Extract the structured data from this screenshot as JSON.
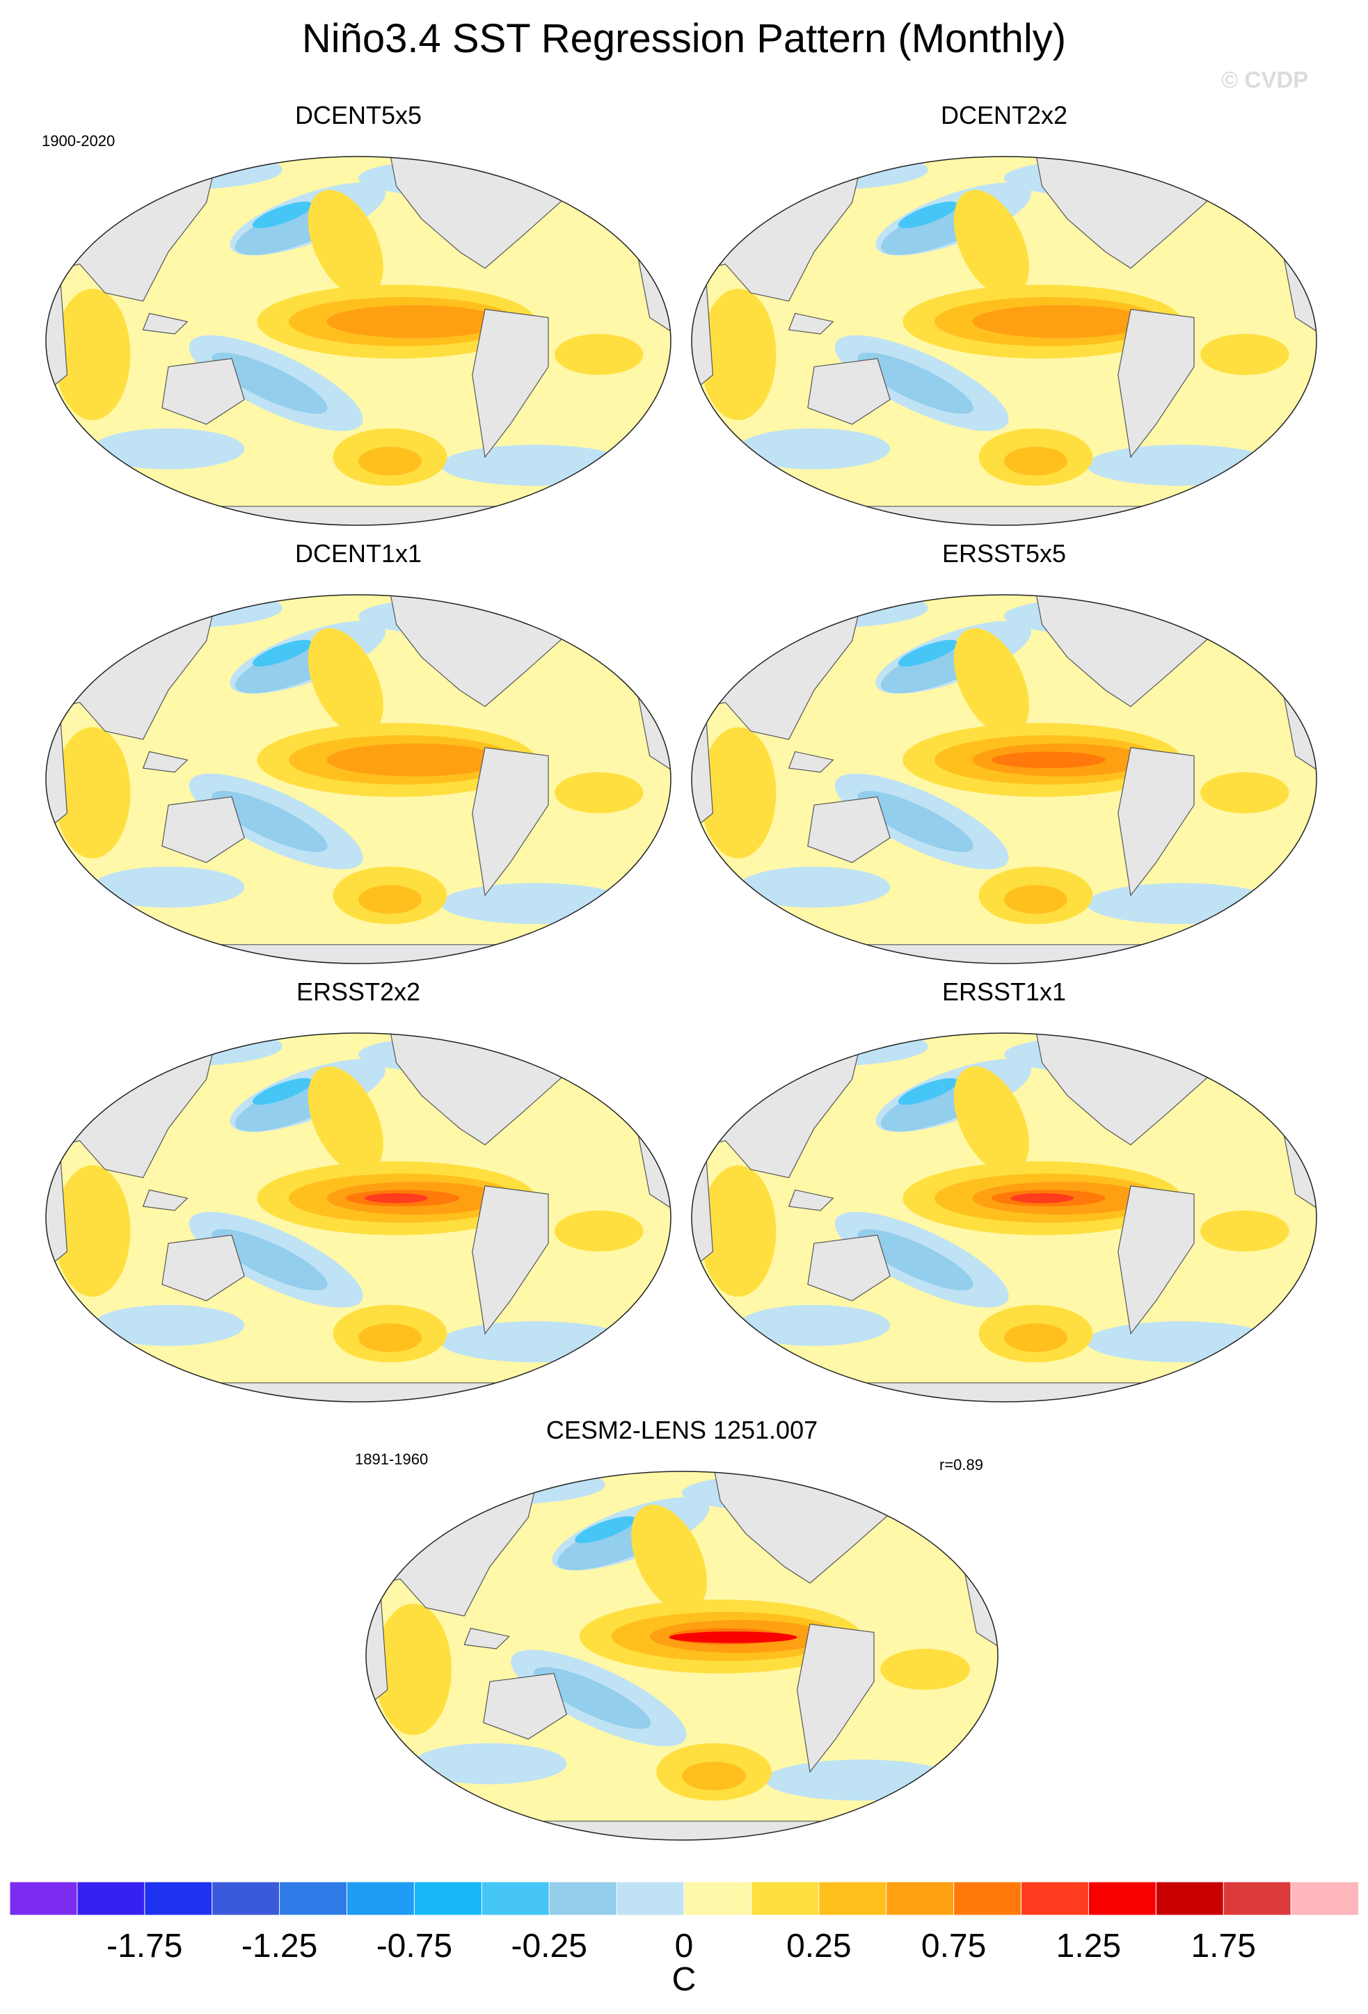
{
  "title": "Niño3.4 SST Regression Pattern (Monthly)",
  "watermark": "© CVDP",
  "chart_data": {
    "type": "heatmap",
    "projection": "Robinson-like global maps (Pacific centered)",
    "units": "C",
    "panels": [
      {
        "name": "DCENT5x5",
        "period": "1900-2020",
        "peak_equatorial_pacific": 0.9
      },
      {
        "name": "DCENT2x2",
        "peak_equatorial_pacific": 0.9
      },
      {
        "name": "DCENT1x1",
        "peak_equatorial_pacific": 0.9
      },
      {
        "name": "ERSST5x5",
        "peak_equatorial_pacific": 1.1
      },
      {
        "name": "ERSST2x2",
        "peak_equatorial_pacific": 1.3
      },
      {
        "name": "ERSST1x1",
        "peak_equatorial_pacific": 1.3
      },
      {
        "name": "CESM2-LENS 1251.007",
        "period": "1891-1960",
        "pattern_correlation": "r=0.89",
        "peak_equatorial_pacific": 1.6
      }
    ],
    "colorbar": {
      "levels": [
        -2.0,
        -1.75,
        -1.5,
        -1.25,
        -1.0,
        -0.75,
        -0.5,
        -0.25,
        -0.1,
        0,
        0.1,
        0.25,
        0.5,
        0.75,
        1.0,
        1.25,
        1.5,
        1.75,
        2.0
      ],
      "colors": [
        "#7b2cf0",
        "#3620f4",
        "#1f32f0",
        "#3a5adb",
        "#2f7ce8",
        "#1f9cf5",
        "#15b7f7",
        "#46c6f6",
        "#93ceec",
        "#bfe2f5",
        "#fff8a8",
        "#ffdf40",
        "#ffc01e",
        "#ff9f12",
        "#ff7a0a",
        "#ff3c1e",
        "#f80000",
        "#c90000",
        "#dc3a3a",
        "#ffb6bd"
      ],
      "tick_labels": [
        "-1.75",
        "-1.25",
        "-0.75",
        "-0.25",
        "0",
        "0.25",
        "0.75",
        "1.25",
        "1.75"
      ],
      "tick_values": [
        -1.75,
        -1.25,
        -0.75,
        -0.25,
        0,
        0.25,
        0.75,
        1.25,
        1.75
      ],
      "unit_label": "C"
    }
  }
}
